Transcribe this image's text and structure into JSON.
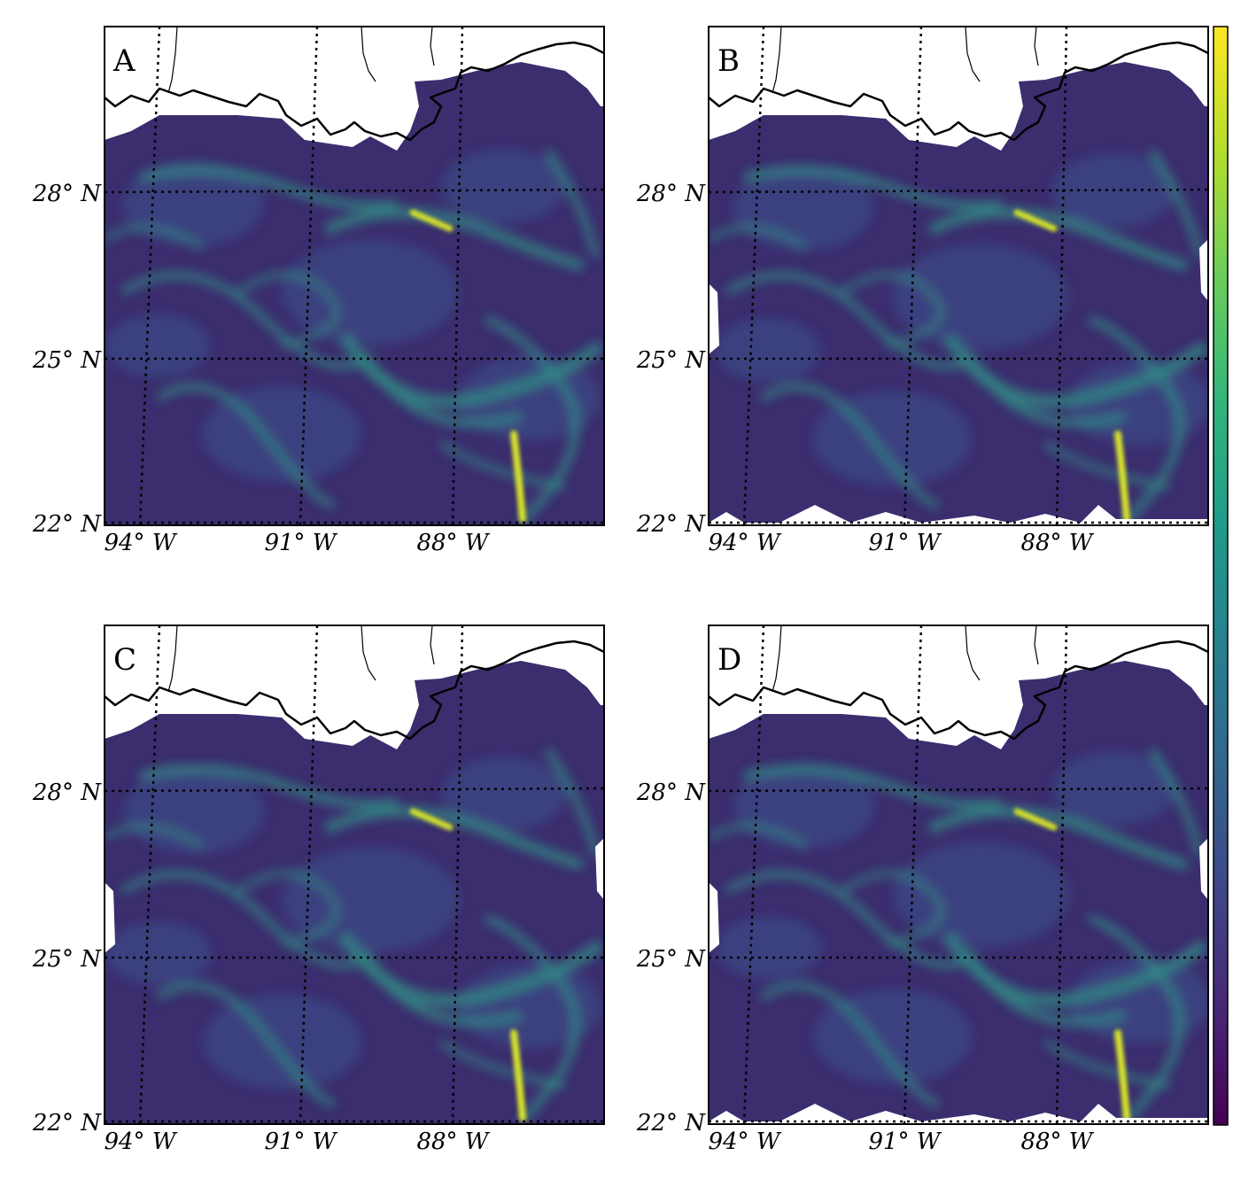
{
  "figure": {
    "panels": [
      {
        "id": "A",
        "label": "A"
      },
      {
        "id": "B",
        "label": "B"
      },
      {
        "id": "C",
        "label": "C"
      },
      {
        "id": "D",
        "label": "D"
      }
    ],
    "latitude_labels": [
      "28° N",
      "25° N",
      "22° N"
    ],
    "longitude_labels": [
      "94° W",
      "91° W",
      "88° W"
    ],
    "colormap": {
      "name": "viridis",
      "stops": [
        "#440154",
        "#482878",
        "#3e4989",
        "#31688e",
        "#26828e",
        "#1f9e89",
        "#35b779",
        "#6ece58",
        "#b5de2b",
        "#fde725"
      ]
    },
    "colors": {
      "ocean_dark": "#3b2d6e",
      "ocean_mid": "#3a4f8a",
      "filament": "#2f9e8a",
      "hotspot": "#d9e52b",
      "coastline": "#000000",
      "land": "#ffffff"
    }
  }
}
